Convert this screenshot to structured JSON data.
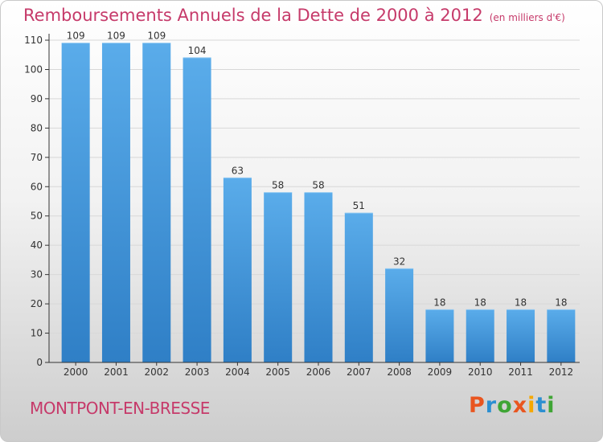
{
  "header": {
    "title": "Remboursements Annuels de la Dette de 2000 à 2012",
    "unit": "(en milliers d'€)"
  },
  "footer": {
    "commune": "MONTPONT-EN-BRESSE",
    "brand": "Proxiti",
    "brand_colors": [
      "#e9551f",
      "#2c8fd1",
      "#3fa535",
      "#e9551f",
      "#f5a800",
      "#2c8fd1",
      "#3fa535"
    ]
  },
  "colors": {
    "bar_light": "#5aacea",
    "bar_dark": "#2f7fc6",
    "title": "#c63a6a",
    "axis": "#333333",
    "grid": "#d8d8d8"
  },
  "chart_data": {
    "type": "bar",
    "title": "Remboursements Annuels de la Dette de 2000 à 2012",
    "subtitle": "(en milliers d'€)",
    "xlabel": "",
    "ylabel": "",
    "categories": [
      "2000",
      "2001",
      "2002",
      "2003",
      "2004",
      "2005",
      "2006",
      "2007",
      "2008",
      "2009",
      "2010",
      "2011",
      "2012"
    ],
    "values": [
      109,
      109,
      109,
      104,
      63,
      58,
      58,
      51,
      32,
      18,
      18,
      18,
      18
    ],
    "value_labels": [
      "109",
      "109",
      "109",
      "104",
      "63",
      "58",
      "58",
      "51",
      "32",
      "18",
      "18",
      "18",
      "18"
    ],
    "ylim": [
      0,
      110
    ],
    "yticks": [
      0,
      10,
      20,
      30,
      40,
      50,
      60,
      70,
      80,
      90,
      100,
      110
    ],
    "grid": true,
    "legend": "none"
  }
}
